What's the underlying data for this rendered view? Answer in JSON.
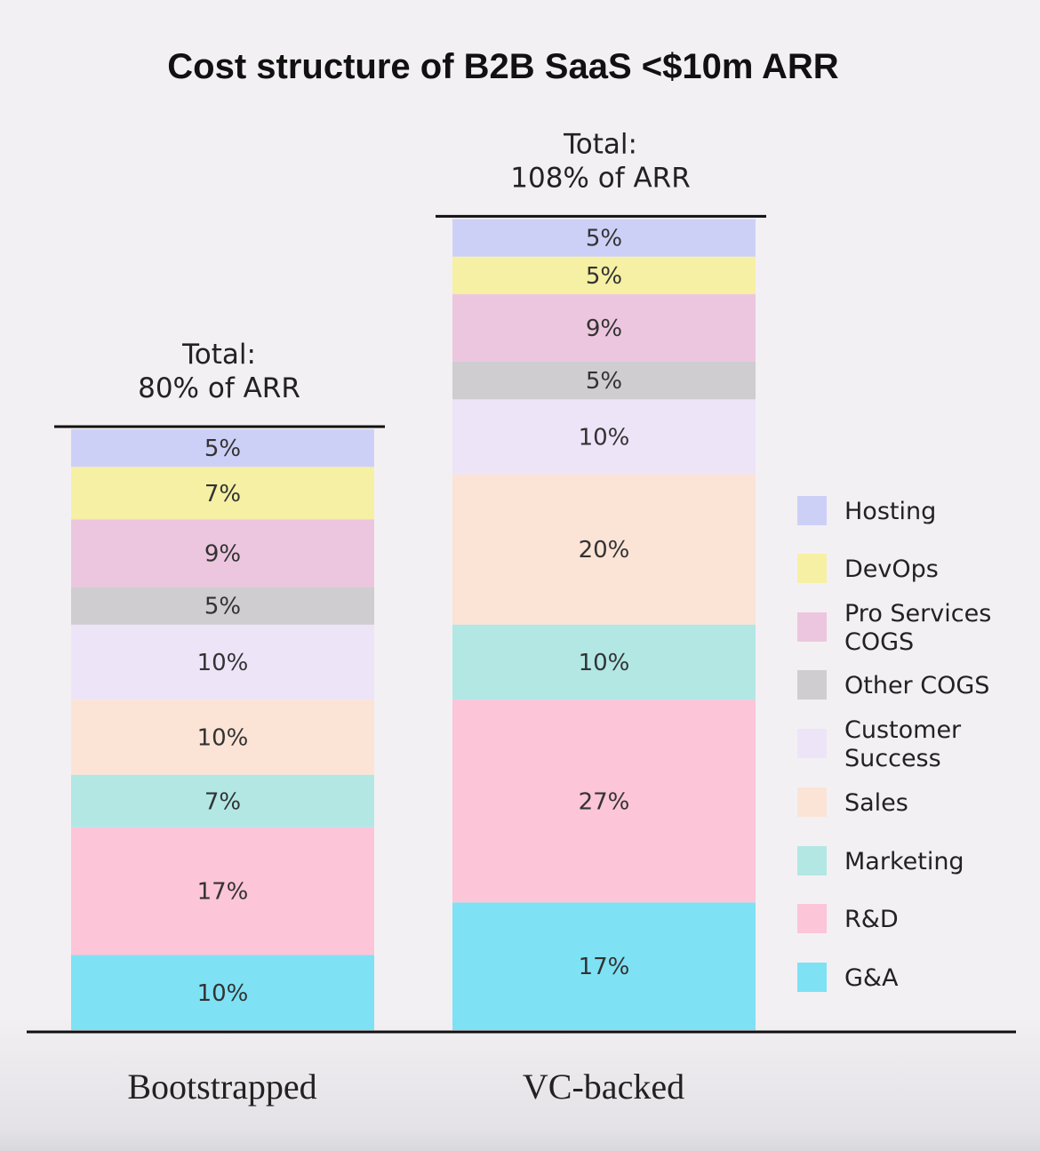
{
  "chart_data": {
    "type": "bar",
    "stacked": true,
    "title": "Cost structure of B2B SaaS <$10m ARR",
    "unit": "% of ARR",
    "categories": [
      "Bootstrapped",
      "VC-backed"
    ],
    "totals": [
      {
        "line1": "Total:",
        "line2": "80% of ARR",
        "value": 80
      },
      {
        "line1": "Total:",
        "line2": "108% of ARR",
        "value": 108
      }
    ],
    "series": [
      {
        "name": "Hosting",
        "color": "#cdd0f6",
        "values": [
          5,
          5
        ]
      },
      {
        "name": "DevOps",
        "color": "#f6f0a4",
        "values": [
          7,
          5
        ]
      },
      {
        "name": "Pro Services COGS",
        "color": "#ecc6de",
        "values": [
          9,
          9
        ]
      },
      {
        "name": "Other COGS",
        "color": "#cfcdd0",
        "values": [
          5,
          5
        ]
      },
      {
        "name": "Customer Success",
        "color": "#ede4f8",
        "values": [
          10,
          10
        ]
      },
      {
        "name": "Sales",
        "color": "#fbe4d6",
        "values": [
          10,
          20
        ]
      },
      {
        "name": "Marketing",
        "color": "#b2e7e4",
        "values": [
          7,
          10
        ]
      },
      {
        "name": "R&D",
        "color": "#fcc5d8",
        "values": [
          17,
          27
        ]
      },
      {
        "name": "G&A",
        "color": "#7fe1f4",
        "values": [
          10,
          17
        ]
      }
    ],
    "legend": {
      "position": "right",
      "entries": [
        {
          "line1": "Hosting",
          "line2": ""
        },
        {
          "line1": "DevOps",
          "line2": ""
        },
        {
          "line1": "Pro Services",
          "line2": "COGS"
        },
        {
          "line1": "Other COGS",
          "line2": ""
        },
        {
          "line1": "Customer",
          "line2": "Success"
        },
        {
          "line1": "Sales",
          "line2": ""
        },
        {
          "line1": "Marketing",
          "line2": ""
        },
        {
          "line1": "R&D",
          "line2": ""
        },
        {
          "line1": "G&A",
          "line2": ""
        }
      ]
    },
    "grid": false
  }
}
